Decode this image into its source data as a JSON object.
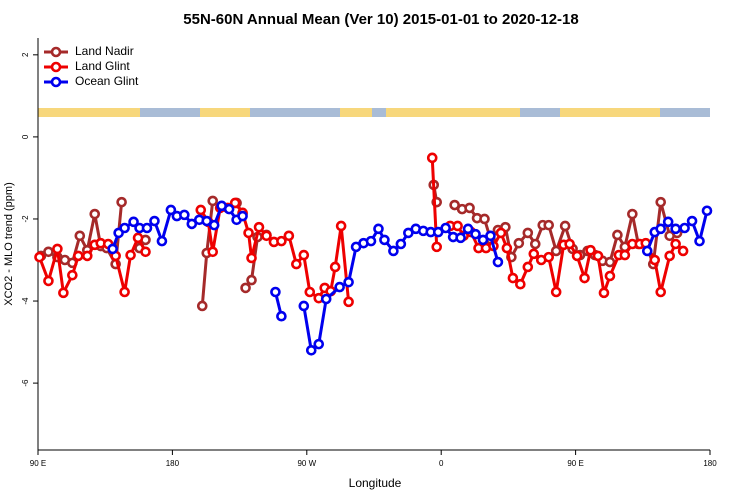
{
  "chart_data": {
    "type": "line",
    "title": "55N-60N Annual Mean (Ver 10)   2015-01-01 to 2020-12-18",
    "x_label": "Longitude",
    "y_label": "XCO2 - MLO trend (ppm)",
    "xlim": [
      90,
      540
    ],
    "xticks": [
      {
        "value": 90,
        "label": "90 E"
      },
      {
        "value": 180,
        "label": "180"
      },
      {
        "value": 270,
        "label": "90 W"
      },
      {
        "value": 360,
        "label": "0"
      },
      {
        "value": 450,
        "label": "90 E"
      },
      {
        "value": 540,
        "label": "180"
      }
    ],
    "ylim": [
      -7.63,
      2.41
    ],
    "yticks": [
      2,
      0,
      -2,
      -4,
      -6
    ],
    "legend": "top-left",
    "series": [
      {
        "name": "Land Nadir",
        "color": "#a52a2a",
        "x": [
          92,
          97,
          103,
          108,
          113,
          118,
          123,
          128,
          132,
          136,
          142,
          146,
          null,
          158,
          162,
          null,
          200,
          203,
          207,
          null,
          223,
          227,
          null,
          229,
          233,
          237,
          243,
          null,
          355,
          357,
          null,
          369,
          374,
          379,
          384,
          389,
          393,
          398,
          403,
          407,
          412,
          418,
          423,
          428,
          432,
          437,
          443,
          448,
          453,
          458,
          463,
          468,
          473,
          478,
          483,
          488,
          492,
          497,
          502,
          507,
          513,
          518
        ],
        "values": [
          -2.9,
          -2.8,
          -2.93,
          -3.0,
          -3.07,
          -2.41,
          -2.76,
          -1.88,
          -2.66,
          -2.71,
          -3.1,
          -1.59,
          null,
          -2.71,
          -2.51,
          null,
          -4.12,
          -2.83,
          -1.56,
          null,
          -1.61,
          -1.88,
          null,
          -3.68,
          -3.49,
          -2.44,
          -2.39,
          null,
          -1.17,
          -1.59,
          null,
          -1.66,
          -1.76,
          -1.73,
          -1.98,
          -2.0,
          -2.49,
          -2.27,
          -2.2,
          -2.93,
          -2.59,
          -2.34,
          -2.61,
          -2.15,
          -2.15,
          -2.78,
          -2.17,
          -2.73,
          -2.88,
          -2.78,
          -2.88,
          -3.02,
          -3.05,
          -2.39,
          -2.68,
          -1.88,
          -2.61,
          -2.61,
          -3.1,
          -1.59,
          -2.41,
          -2.34
        ]
      },
      {
        "name": "Land Glint",
        "color": "#ee0000",
        "x": [
          91,
          97,
          103,
          107,
          113,
          117,
          123,
          128,
          132,
          137,
          142,
          148,
          152,
          157,
          162,
          null,
          199,
          204,
          207,
          212,
          217,
          222,
          227,
          231,
          233,
          238,
          243,
          248,
          253,
          258,
          263,
          268,
          272,
          278,
          282,
          286,
          289,
          293,
          298,
          null,
          354,
          357,
          null,
          366,
          371,
          375,
          380,
          385,
          390,
          395,
          400,
          404,
          408,
          413,
          418,
          422,
          427,
          432,
          437,
          442,
          446,
          451,
          456,
          460,
          465,
          469,
          473,
          479,
          483,
          488,
          493,
          497,
          503,
          507,
          513,
          517,
          522
        ],
        "values": [
          -2.93,
          -3.51,
          -2.73,
          -3.8,
          -3.37,
          -2.9,
          -2.9,
          -2.63,
          -2.59,
          -2.61,
          -2.9,
          -3.78,
          -2.88,
          -2.46,
          -2.8,
          null,
          -1.78,
          -2.07,
          -2.8,
          -1.73,
          -1.73,
          -1.61,
          -1.85,
          -2.34,
          -2.95,
          -2.2,
          -2.41,
          -2.56,
          -2.54,
          -2.41,
          -3.1,
          -2.88,
          -3.78,
          -3.93,
          -3.68,
          -3.76,
          -3.17,
          -2.17,
          -4.02,
          null,
          -0.51,
          -2.68,
          null,
          -2.17,
          -2.17,
          -2.41,
          -2.32,
          -2.71,
          -2.71,
          -2.66,
          -2.34,
          -2.71,
          -3.44,
          -3.59,
          -3.17,
          -2.85,
          -3.0,
          -2.93,
          -3.78,
          -2.63,
          -2.61,
          -2.9,
          -3.44,
          -2.76,
          -2.9,
          -3.8,
          -3.39,
          -2.88,
          -2.88,
          -2.61,
          -2.61,
          -2.59,
          -3.0,
          -3.78,
          -2.9,
          -2.61,
          -2.78
        ]
      },
      {
        "name": "Ocean Glint",
        "color": "#0000ee",
        "x": [
          140,
          144,
          148,
          154,
          158,
          163,
          168,
          173,
          179,
          183,
          188,
          193,
          198,
          203,
          208,
          213,
          218,
          223,
          227,
          null,
          249,
          253,
          null,
          268,
          273,
          278,
          283,
          292,
          298,
          303,
          308,
          313,
          318,
          322,
          328,
          333,
          338,
          343,
          348,
          353,
          358,
          363,
          368,
          373,
          378,
          383,
          388,
          393,
          398,
          null,
          498,
          503,
          507,
          512,
          517,
          523,
          528,
          533,
          538
        ],
        "values": [
          -2.73,
          -2.34,
          -2.22,
          -2.07,
          -2.22,
          -2.22,
          -2.05,
          -2.54,
          -1.78,
          -1.93,
          -1.9,
          -2.12,
          -2.02,
          -2.05,
          -2.15,
          -1.68,
          -1.76,
          -2.02,
          -1.93,
          null,
          -3.78,
          -4.37,
          null,
          -4.12,
          -5.2,
          -5.05,
          -3.95,
          -3.66,
          -3.54,
          -2.68,
          -2.59,
          -2.54,
          -2.24,
          -2.51,
          -2.78,
          -2.61,
          -2.34,
          -2.24,
          -2.29,
          -2.32,
          -2.32,
          -2.22,
          -2.44,
          -2.46,
          -2.24,
          -2.37,
          -2.51,
          -2.41,
          -3.05,
          null,
          -2.78,
          -2.32,
          -2.24,
          -2.07,
          -2.24,
          -2.22,
          -2.05,
          -2.54,
          -1.8
        ]
      }
    ]
  }
}
